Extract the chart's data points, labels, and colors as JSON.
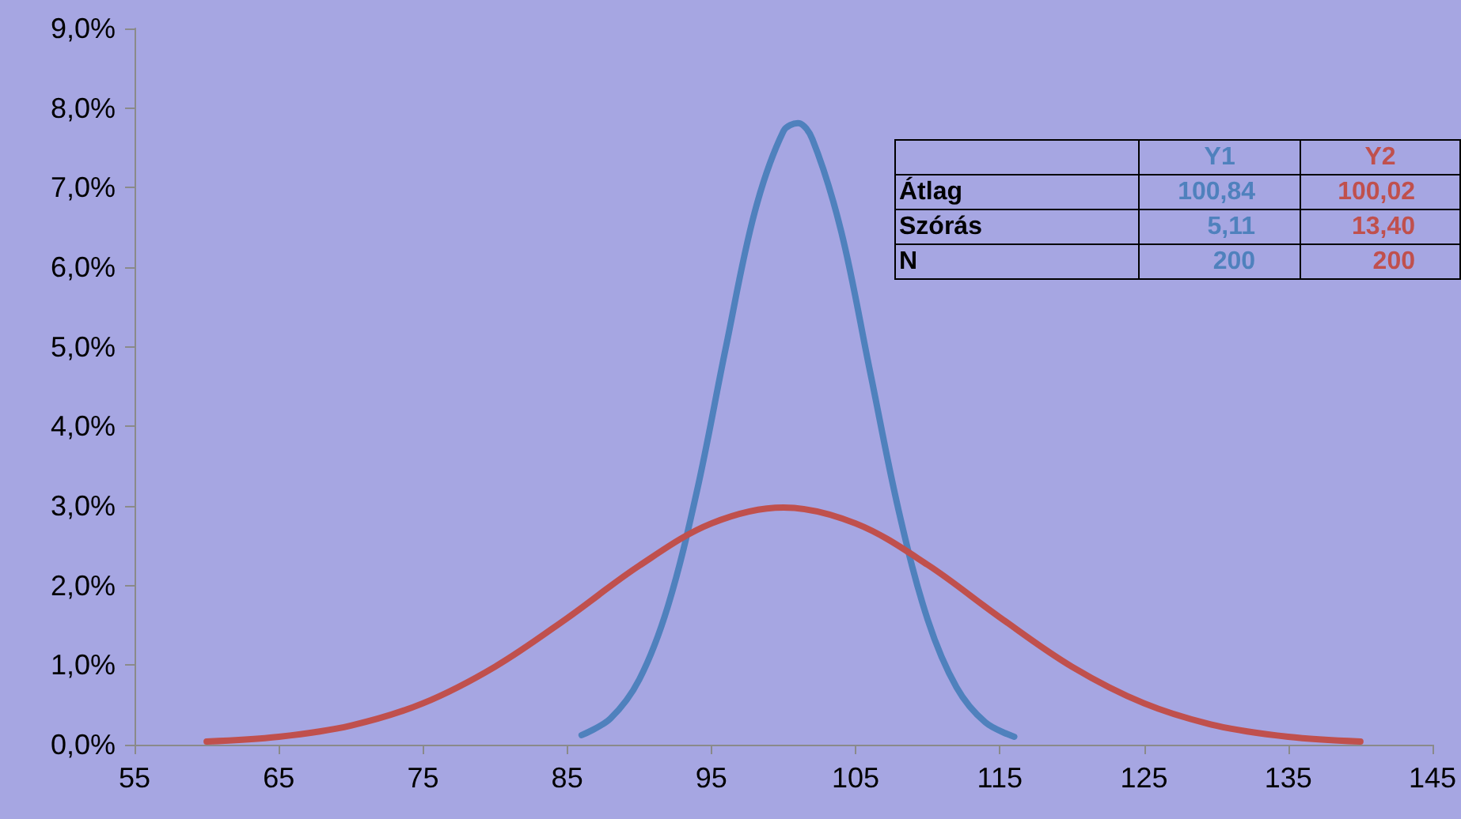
{
  "chart_data": {
    "type": "line",
    "marker": "none",
    "line_style": "solid",
    "series": [
      {
        "name": "Y1",
        "color": "#4f81bd",
        "x": [
          86,
          88,
          90,
          92,
          94,
          96,
          98,
          100,
          101,
          102,
          104,
          106,
          108,
          110,
          112,
          114,
          116
        ],
        "values": [
          0.12,
          0.33,
          0.82,
          1.75,
          3.19,
          4.99,
          6.69,
          7.71,
          7.81,
          7.61,
          6.45,
          4.69,
          2.93,
          1.57,
          0.72,
          0.28,
          0.1
        ]
      },
      {
        "name": "Y2",
        "color": "#c0504d",
        "x": [
          60,
          65,
          70,
          75,
          80,
          85,
          90,
          95,
          100,
          105,
          110,
          115,
          120,
          125,
          130,
          135,
          140
        ],
        "values": [
          0.04,
          0.1,
          0.24,
          0.52,
          0.98,
          1.59,
          2.25,
          2.78,
          2.98,
          2.78,
          2.26,
          1.6,
          0.98,
          0.52,
          0.24,
          0.1,
          0.04
        ]
      }
    ],
    "xlim": [
      55,
      145
    ],
    "xticks": [
      55,
      65,
      75,
      85,
      95,
      105,
      115,
      125,
      135,
      145
    ],
    "ylim": [
      0,
      9
    ],
    "yticks": [
      {
        "value": 0,
        "label": "0,0%"
      },
      {
        "value": 1,
        "label": "1,0%"
      },
      {
        "value": 2,
        "label": "2,0%"
      },
      {
        "value": 3,
        "label": "3,0%"
      },
      {
        "value": 4,
        "label": "4,0%"
      },
      {
        "value": 5,
        "label": "5,0%"
      },
      {
        "value": 6,
        "label": "6,0%"
      },
      {
        "value": 7,
        "label": "7,0%"
      },
      {
        "value": 8,
        "label": "8,0%"
      },
      {
        "value": 9,
        "label": "9,0%"
      }
    ],
    "annotations": [
      "Átlag",
      "100,84",
      "100,02",
      "Szórás",
      "5,11",
      "13,40",
      "N",
      "200",
      "200"
    ]
  }
}
